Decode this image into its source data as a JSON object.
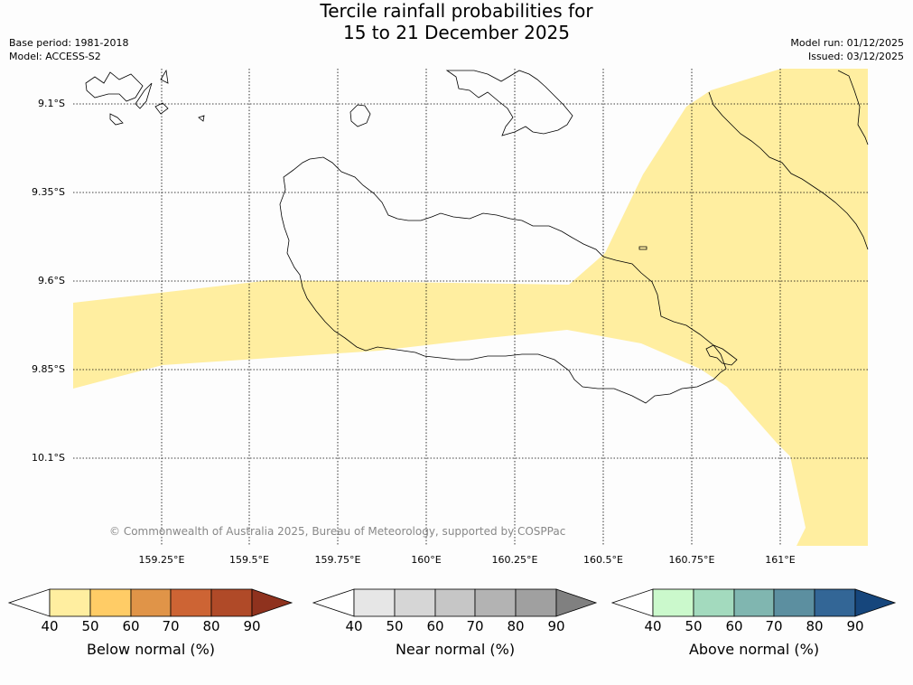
{
  "title_line1": "Tercile rainfall probabilities for",
  "title_line2": "15 to 21 December 2025",
  "base_period": "Base period: 1981-2018",
  "model": "Model: ACCESS-S2",
  "model_run": "Model run: 01/12/2025",
  "issued": "Issued: 03/12/2025",
  "copyright": "© Commonwealth of Australia 2025, Bureau of Meteorology, supported by COSPPac",
  "latitudes": [
    "9.1°S",
    "9.35°S",
    "9.6°S",
    "9.85°S",
    "10.1°S"
  ],
  "longitudes": [
    "159.25°E",
    "159.5°E",
    "159.75°E",
    "160°E",
    "160.25°E",
    "160.5°E",
    "160.75°E",
    "161°E"
  ],
  "colorbars": [
    {
      "label": "Below normal (%)",
      "ticks": [
        "40",
        "50",
        "60",
        "70",
        "80",
        "90"
      ],
      "colors": [
        "#ffeea0",
        "#ffcc66",
        "#e09448",
        "#cd6434",
        "#b04a28",
        "#8f321e"
      ]
    },
    {
      "label": "Near normal (%)",
      "ticks": [
        "40",
        "50",
        "60",
        "70",
        "80",
        "90"
      ],
      "colors": [
        "#e6e6e6",
        "#d6d6d6",
        "#c6c6c6",
        "#b3b3b3",
        "#a0a0a0",
        "#808080"
      ]
    },
    {
      "label": "Above normal (%)",
      "ticks": [
        "40",
        "50",
        "60",
        "70",
        "80",
        "90"
      ],
      "colors": [
        "#cbf9cc",
        "#a3dabe",
        "#80b6b0",
        "#5c8fa0",
        "#336696",
        "#16467c"
      ]
    }
  ],
  "colors": {
    "below_40_50": "#ffeea0",
    "coast": "#000000",
    "grid": "#000000"
  }
}
